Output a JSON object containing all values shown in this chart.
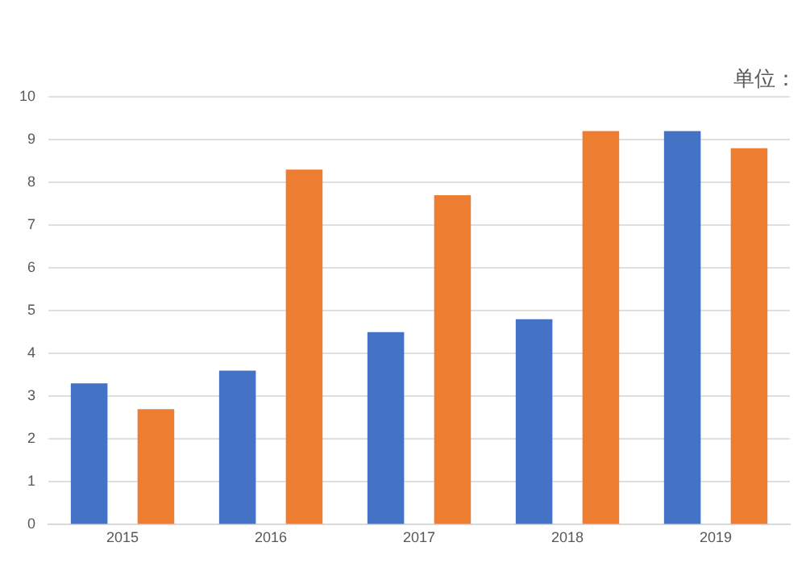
{
  "chart_data": {
    "type": "bar",
    "categories": [
      "2015",
      "2016",
      "2017",
      "2018",
      "2019"
    ],
    "series": [
      {
        "color": "#4472c4",
        "values": [
          3.3,
          3.6,
          4.5,
          4.8,
          9.2
        ]
      },
      {
        "color": "#ed7d31",
        "values": [
          2.7,
          8.3,
          7.7,
          9.2,
          8.8
        ]
      }
    ],
    "ylim": [
      0,
      10
    ],
    "yticks": [
      0,
      1,
      2,
      3,
      4,
      5,
      6,
      7,
      8,
      9,
      10
    ],
    "grid": "y",
    "legend": false,
    "annotations": [
      "单位："
    ]
  }
}
